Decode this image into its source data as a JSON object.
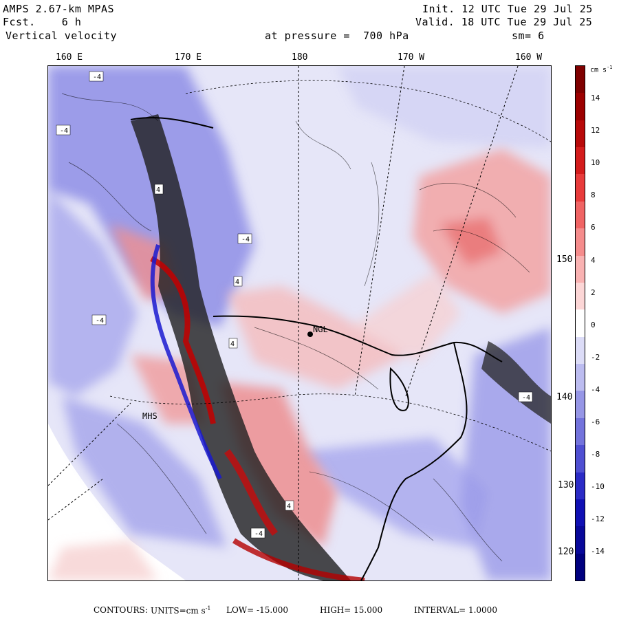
{
  "header": {
    "model": "AMPS 2.67-km MPAS",
    "fcst_label": "Fcst.",
    "fcst_value": "6 h",
    "field": "Vertical velocity",
    "init": "Init. 12 UTC Tue 29 Jul 25",
    "valid": "Valid. 18 UTC Tue 29 Jul 25",
    "level_label": "at pressure =",
    "level_value": "700 hPa",
    "smoothing": "sm= 6"
  },
  "longitude_labels": [
    "160 E",
    "170 E",
    "180",
    "170 W",
    "160 W"
  ],
  "latitude_labels": [
    "150 W",
    "140 W",
    "130 W",
    "120 W"
  ],
  "stations": [
    {
      "name": "NGL"
    },
    {
      "name": "MHS"
    }
  ],
  "colorbar": {
    "unit": "cm s",
    "unit_sup": "-1",
    "ticks": [
      "14",
      "12",
      "10",
      "8",
      "6",
      "4",
      "2",
      "0",
      "-2",
      "-4",
      "-6",
      "-8",
      "-10",
      "-12",
      "-14"
    ],
    "colors": [
      "#7f0000",
      "#9c0000",
      "#b80a0a",
      "#d41c1c",
      "#e83b3b",
      "#f06464",
      "#f58c8c",
      "#f9b2b2",
      "#fcd6d6",
      "#ffffff",
      "#dcdcf7",
      "#bcbcf0",
      "#9696e6",
      "#7373dc",
      "#4f4fd2",
      "#2b2bc6",
      "#1010b4",
      "#08089a",
      "#00007f"
    ]
  },
  "footer": {
    "contours_label": "CONTOURS:",
    "units_label": "UNITS=cm s",
    "units_sup": "-1",
    "low": "LOW= -15.000",
    "high": "HIGH= 15.000",
    "interval": "INTERVAL= 1.0000"
  }
}
